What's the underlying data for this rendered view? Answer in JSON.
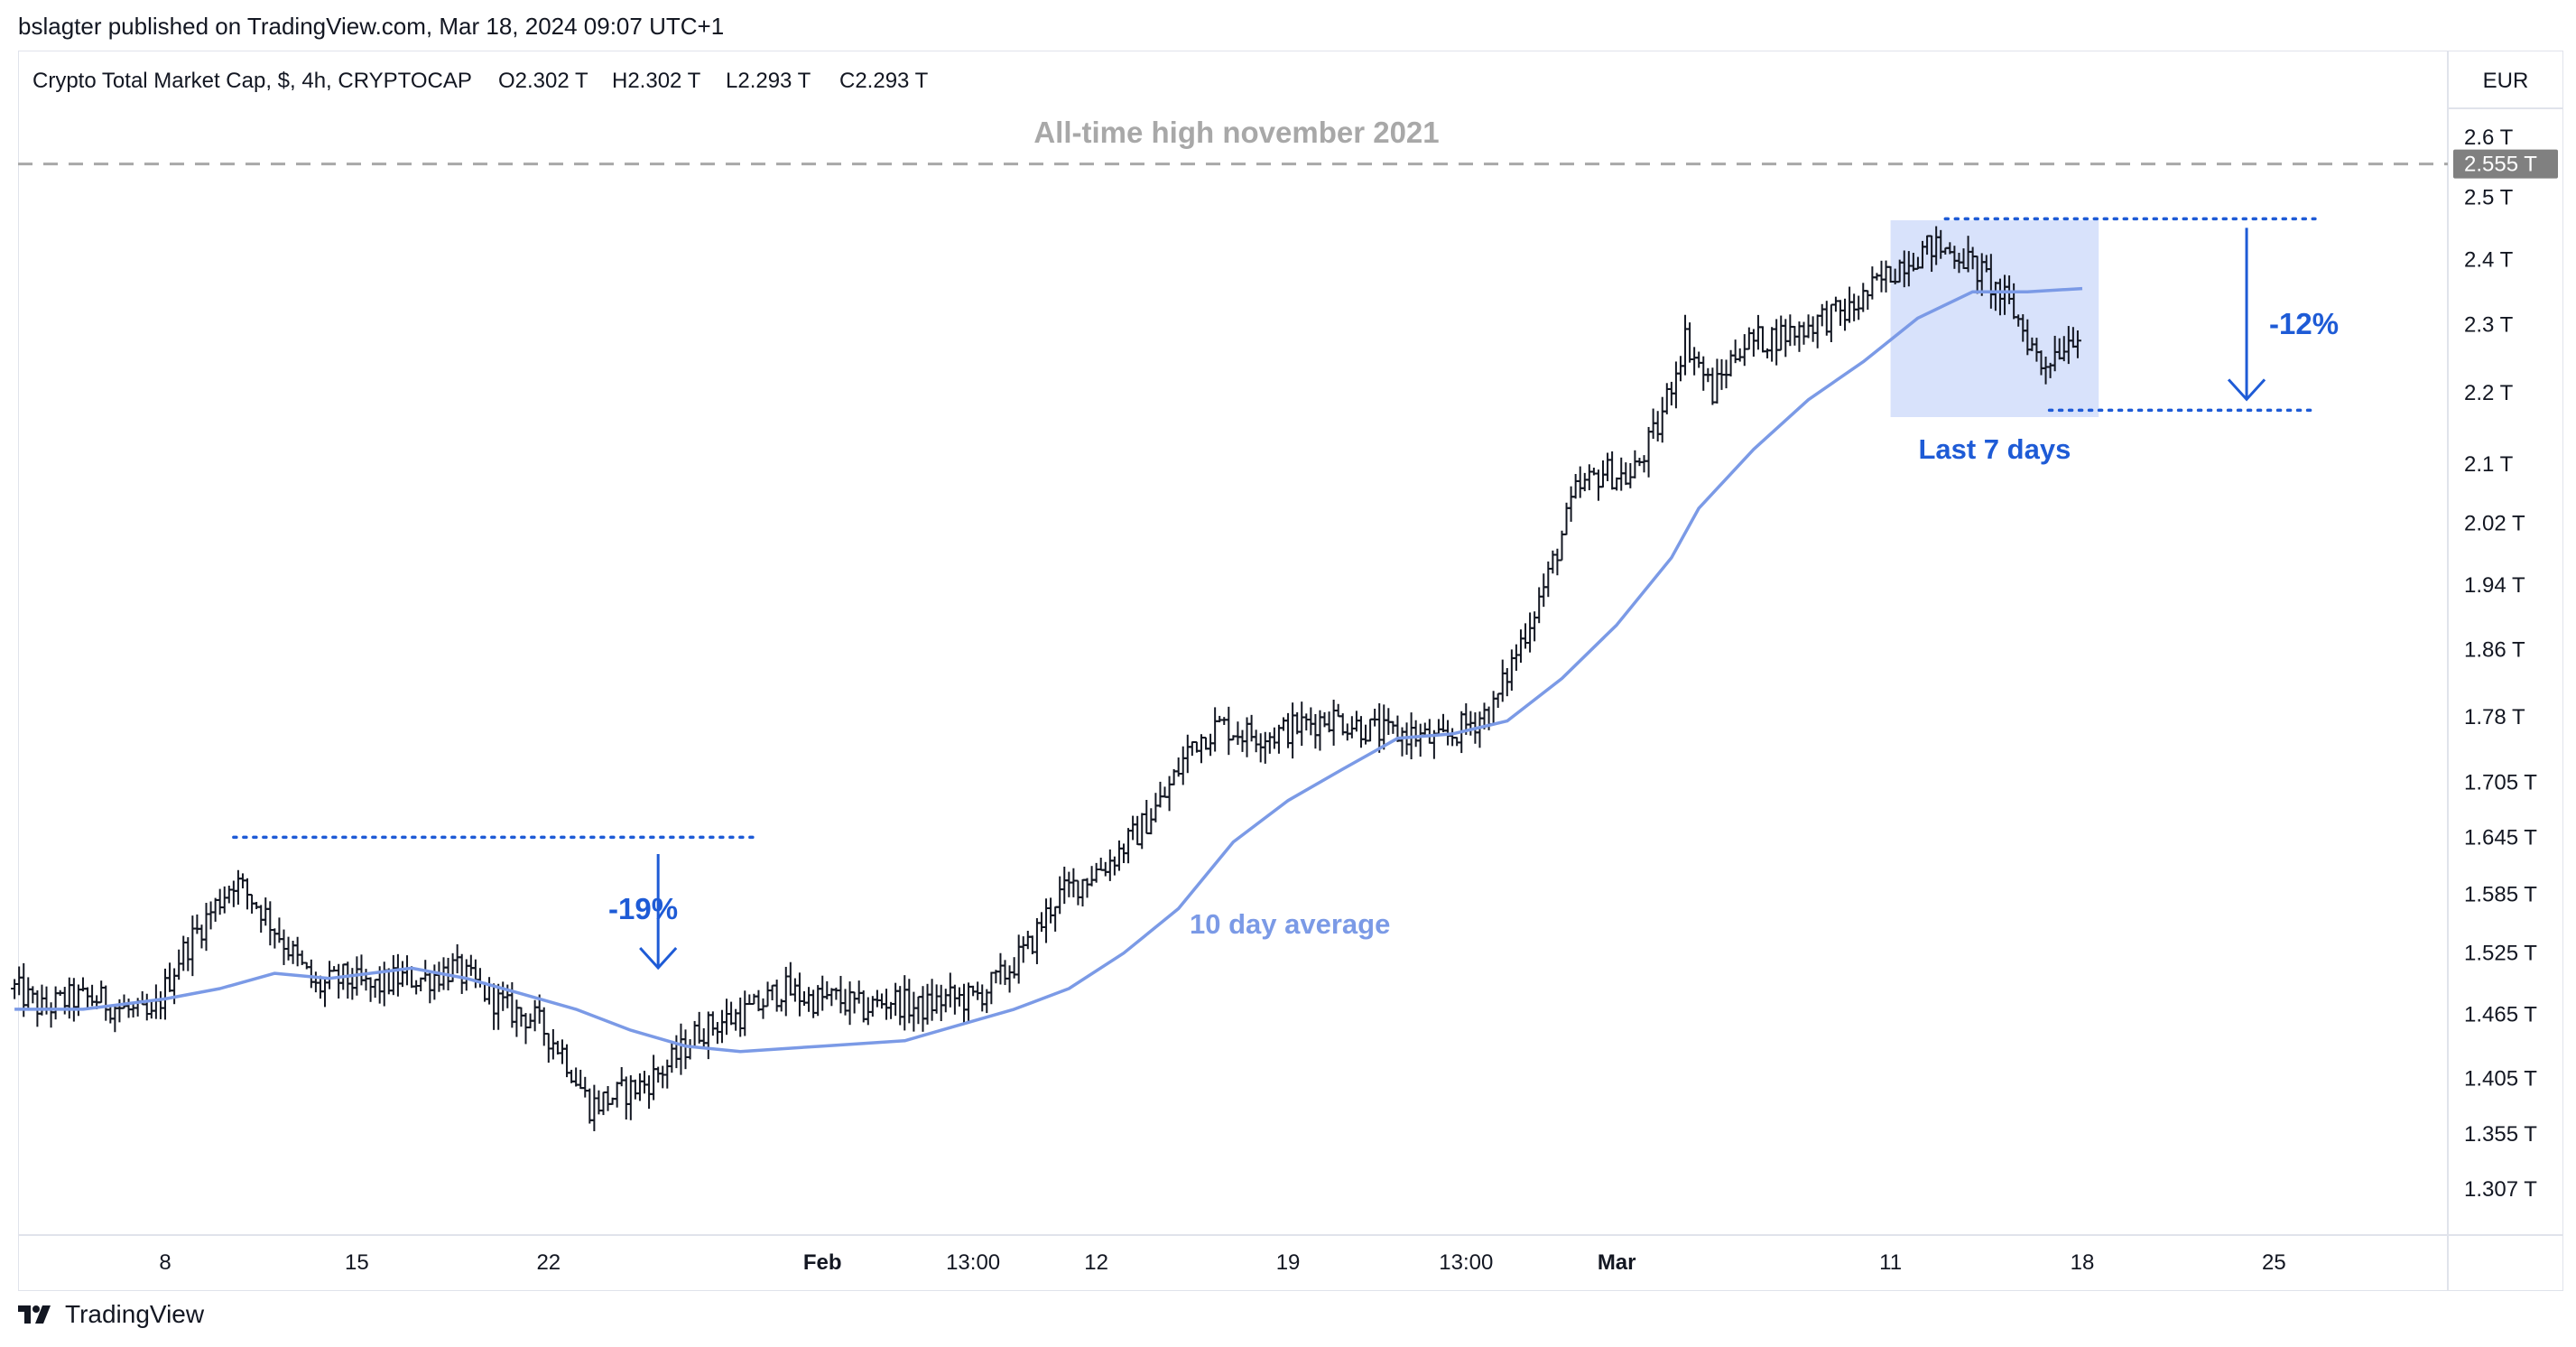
{
  "header": {
    "published": "bslagter published on TradingView.com, Mar 18, 2024 09:07 UTC+1",
    "symbol_line": "Crypto Total Market Cap, $, 4h, CRYPTOCAP",
    "ohlc": [
      {
        "k": "O",
        "v": "2.302 T"
      },
      {
        "k": "H",
        "v": "2.302 T"
      },
      {
        "k": "L",
        "v": "2.293 T"
      },
      {
        "k": "C",
        "v": "2.293 T"
      }
    ],
    "currency_button": "EUR"
  },
  "footer": {
    "brand": "TradingView"
  },
  "chart_data": {
    "type": "candlestick-ohlc",
    "title": "Crypto Total Market Cap, $, 4h, CRYPTOCAP",
    "unit": "T",
    "y_ticks": [
      "2.6 T",
      "2.5 T",
      "2.4 T",
      "2.3 T",
      "2.2 T",
      "2.1 T",
      "2.02 T",
      "1.94 T",
      "1.86 T",
      "1.78 T",
      "1.705 T",
      "1.645 T",
      "1.585 T",
      "1.525 T",
      "1.465 T",
      "1.405 T",
      "1.355 T",
      "1.307 T"
    ],
    "y_tick_values": [
      2.6,
      2.5,
      2.4,
      2.3,
      2.2,
      2.1,
      2.02,
      1.94,
      1.86,
      1.78,
      1.705,
      1.645,
      1.585,
      1.525,
      1.465,
      1.405,
      1.355,
      1.307
    ],
    "ylim": [
      1.26,
      2.66
    ],
    "x_ticks": [
      {
        "label": "8",
        "day": 8,
        "bold": false
      },
      {
        "label": "15",
        "day": 15,
        "bold": false
      },
      {
        "label": "22",
        "day": 22,
        "bold": false
      },
      {
        "label": "Feb",
        "day": 32,
        "bold": true
      },
      {
        "label": "13:00",
        "day": 37.5,
        "bold": false
      },
      {
        "label": "12",
        "day": 42,
        "bold": false
      },
      {
        "label": "19",
        "day": 49,
        "bold": false
      },
      {
        "label": "13:00",
        "day": 55.5,
        "bold": false
      },
      {
        "label": "Mar",
        "day": 61,
        "bold": true
      },
      {
        "label": "11",
        "day": 71,
        "bold": false
      },
      {
        "label": "18",
        "day": 78,
        "bold": false
      },
      {
        "label": "25",
        "day": 85,
        "bold": false
      }
    ],
    "xlim_days": [
      2.5,
      91.5
    ],
    "price_series": [
      [
        2.5,
        1.49
      ],
      [
        3.5,
        1.47
      ],
      [
        4.5,
        1.48
      ],
      [
        5.5,
        1.48
      ],
      [
        6.5,
        1.47
      ],
      [
        7.5,
        1.46
      ],
      [
        8.5,
        1.52
      ],
      [
        9.5,
        1.56
      ],
      [
        10.5,
        1.6
      ],
      [
        11.5,
        1.57
      ],
      [
        12.5,
        1.53
      ],
      [
        13.5,
        1.49
      ],
      [
        14.5,
        1.5
      ],
      [
        15.5,
        1.49
      ],
      [
        16.5,
        1.5
      ],
      [
        17.5,
        1.5
      ],
      [
        18.5,
        1.51
      ],
      [
        19.5,
        1.49
      ],
      [
        20.5,
        1.47
      ],
      [
        21.5,
        1.46
      ],
      [
        22.5,
        1.43
      ],
      [
        23.5,
        1.38
      ],
      [
        24.5,
        1.39
      ],
      [
        25.5,
        1.4
      ],
      [
        26.5,
        1.42
      ],
      [
        27.5,
        1.45
      ],
      [
        28.5,
        1.46
      ],
      [
        29.5,
        1.47
      ],
      [
        30.5,
        1.49
      ],
      [
        31.5,
        1.48
      ],
      [
        32.5,
        1.48
      ],
      [
        33.5,
        1.47
      ],
      [
        34.5,
        1.48
      ],
      [
        35.5,
        1.47
      ],
      [
        36.5,
        1.48
      ],
      [
        37.5,
        1.48
      ],
      [
        38.5,
        1.5
      ],
      [
        39.5,
        1.53
      ],
      [
        40.5,
        1.58
      ],
      [
        41.5,
        1.6
      ],
      [
        42.5,
        1.62
      ],
      [
        43.5,
        1.65
      ],
      [
        44.5,
        1.69
      ],
      [
        45.5,
        1.75
      ],
      [
        46.5,
        1.77
      ],
      [
        47.5,
        1.76
      ],
      [
        48.5,
        1.76
      ],
      [
        49.5,
        1.77
      ],
      [
        50.5,
        1.78
      ],
      [
        51.5,
        1.77
      ],
      [
        52.5,
        1.76
      ],
      [
        53.5,
        1.76
      ],
      [
        54.5,
        1.75
      ],
      [
        55.5,
        1.77
      ],
      [
        56.5,
        1.79
      ],
      [
        57.5,
        1.87
      ],
      [
        58.5,
        1.95
      ],
      [
        59.5,
        2.06
      ],
      [
        60.5,
        2.09
      ],
      [
        61.5,
        2.08
      ],
      [
        62.5,
        2.15
      ],
      [
        63.5,
        2.28
      ],
      [
        64.5,
        2.2
      ],
      [
        65.5,
        2.27
      ],
      [
        66.5,
        2.28
      ],
      [
        67.5,
        2.29
      ],
      [
        68.5,
        2.31
      ],
      [
        69.5,
        2.32
      ],
      [
        70.5,
        2.36
      ],
      [
        71.5,
        2.4
      ],
      [
        72.5,
        2.42
      ],
      [
        73.5,
        2.41
      ],
      [
        74.5,
        2.37
      ],
      [
        75.5,
        2.32
      ],
      [
        76.5,
        2.24
      ],
      [
        77.5,
        2.28
      ],
      [
        78.0,
        2.3
      ]
    ],
    "series": [
      {
        "name": "10 day average",
        "color": "#7b9ae6",
        "values": [
          [
            2.5,
            1.47
          ],
          [
            5,
            1.47
          ],
          [
            8,
            1.48
          ],
          [
            10,
            1.49
          ],
          [
            12,
            1.505
          ],
          [
            14,
            1.5
          ],
          [
            17,
            1.51
          ],
          [
            19,
            1.5
          ],
          [
            21,
            1.485
          ],
          [
            23,
            1.47
          ],
          [
            25,
            1.45
          ],
          [
            27,
            1.435
          ],
          [
            29,
            1.43
          ],
          [
            32,
            1.435
          ],
          [
            35,
            1.44
          ],
          [
            37,
            1.455
          ],
          [
            39,
            1.47
          ],
          [
            41,
            1.49
          ],
          [
            43,
            1.525
          ],
          [
            45,
            1.57
          ],
          [
            47,
            1.64
          ],
          [
            49,
            1.685
          ],
          [
            51,
            1.72
          ],
          [
            53,
            1.755
          ],
          [
            55,
            1.76
          ],
          [
            57,
            1.775
          ],
          [
            59,
            1.825
          ],
          [
            61,
            1.89
          ],
          [
            63,
            1.975
          ],
          [
            64,
            2.04
          ],
          [
            66,
            2.12
          ],
          [
            68,
            2.19
          ],
          [
            70,
            2.245
          ],
          [
            72,
            2.31
          ],
          [
            74,
            2.35
          ],
          [
            76,
            2.35
          ],
          [
            78,
            2.355
          ]
        ]
      }
    ],
    "annotations": [
      {
        "id": "ath",
        "text": "All-time high november 2021",
        "value": 2.555,
        "label": "2.555 T"
      },
      {
        "id": "drop19",
        "text": "-19%"
      },
      {
        "id": "drop12",
        "text": "-12%"
      },
      {
        "id": "avg",
        "text": "10 day average"
      },
      {
        "id": "last7",
        "text": "Last 7 days"
      }
    ],
    "colors": {
      "candle": "#131722",
      "accent": "#1e5bd6",
      "average": "#7b9ae6",
      "highlight": "#d8e2fb",
      "ath": "#a8a8a8"
    }
  }
}
